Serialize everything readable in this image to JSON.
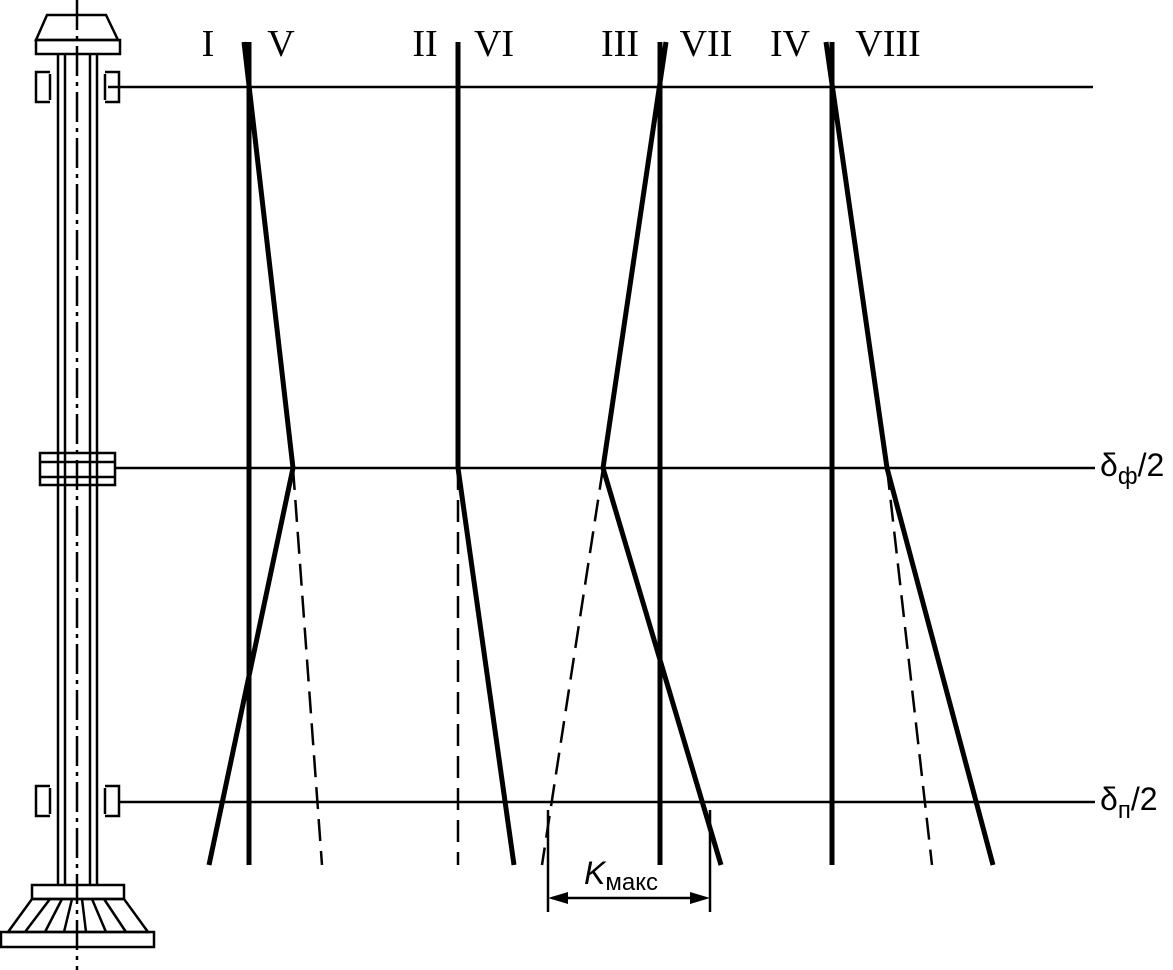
{
  "labels": [
    "I",
    "V",
    "II",
    "VI",
    "III",
    "VII",
    "IV",
    "VIII"
  ],
  "levels": [
    {
      "symbol": "δ",
      "subscript": "ф",
      "suffix": "/2"
    },
    {
      "symbol": "δ",
      "subscript": "п",
      "suffix": "/2"
    }
  ],
  "dimension": {
    "symbol": "K",
    "subscript": "макс"
  }
}
